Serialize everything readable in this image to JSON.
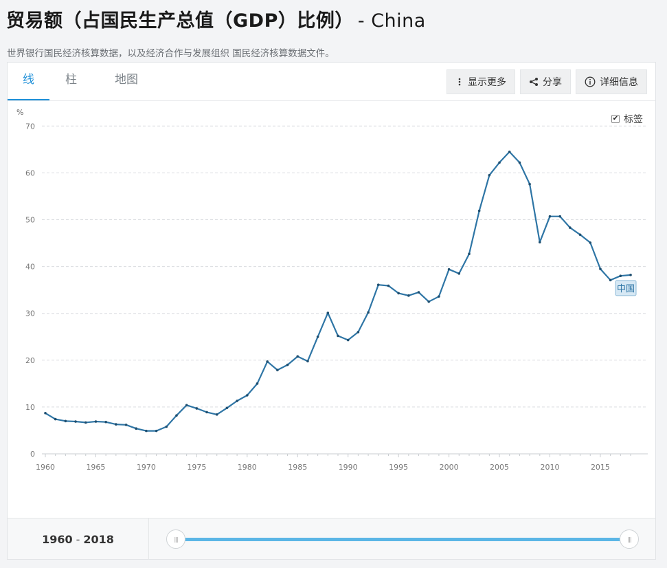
{
  "header": {
    "title": "贸易额（占国民生产总值（GDP）比例）",
    "country": "- China",
    "source": "世界银行国民经济核算数据，以及经济合作与发展组织 国民经济核算数据文件。"
  },
  "tabs": [
    {
      "label": "线",
      "active": true
    },
    {
      "label": "柱",
      "active": false
    },
    {
      "label": "地图",
      "active": false
    }
  ],
  "actions": {
    "more": "显示更多",
    "share": "分享",
    "details": "详细信息"
  },
  "label_toggle": {
    "label": "标签",
    "checked": true
  },
  "unit": "%",
  "series_label": "中国",
  "colors": {
    "line": "#2e75a5",
    "accent": "#1d8fd8",
    "slider": "#5bb6e6"
  },
  "range": {
    "start": "1960",
    "sep": "-",
    "end": "2018"
  },
  "chart_data": {
    "type": "line",
    "title": "贸易额（占国民生产总值（GDP）比例） - China",
    "xlabel": "",
    "ylabel": "%",
    "ylim": [
      0,
      70
    ],
    "xlim": [
      1960,
      2018
    ],
    "yticks": [
      0,
      10,
      20,
      30,
      40,
      50,
      60,
      70
    ],
    "xticks": [
      1960,
      1965,
      1970,
      1975,
      1980,
      1985,
      1990,
      1995,
      2000,
      2005,
      2010,
      2015
    ],
    "grid": true,
    "legend": "inline label at line end",
    "series": [
      {
        "name": "中国",
        "x": [
          1960,
          1961,
          1962,
          1963,
          1964,
          1965,
          1966,
          1967,
          1968,
          1969,
          1970,
          1971,
          1972,
          1973,
          1974,
          1975,
          1976,
          1977,
          1978,
          1979,
          1980,
          1981,
          1982,
          1983,
          1984,
          1985,
          1986,
          1987,
          1988,
          1989,
          1990,
          1991,
          1992,
          1993,
          1994,
          1995,
          1996,
          1997,
          1998,
          1999,
          2000,
          2001,
          2002,
          2003,
          2004,
          2005,
          2006,
          2007,
          2008,
          2009,
          2010,
          2011,
          2012,
          2013,
          2014,
          2015,
          2016,
          2017,
          2018
        ],
        "values": [
          8.7,
          7.4,
          7.0,
          6.9,
          6.7,
          6.9,
          6.8,
          6.3,
          6.2,
          5.4,
          4.9,
          4.9,
          5.8,
          8.2,
          10.4,
          9.7,
          8.9,
          8.4,
          9.8,
          11.3,
          12.5,
          15.0,
          19.7,
          17.9,
          19.0,
          20.8,
          19.8,
          25.0,
          30.1,
          25.2,
          24.3,
          26.0,
          30.2,
          36.1,
          35.9,
          34.3,
          33.8,
          34.5,
          32.5,
          33.6,
          39.4,
          38.5,
          42.7,
          51.9,
          59.5,
          62.2,
          64.5,
          62.2,
          57.6,
          45.2,
          50.7,
          50.7,
          48.3,
          46.8,
          45.1,
          39.5,
          37.1,
          38.0,
          38.2
        ]
      }
    ]
  }
}
